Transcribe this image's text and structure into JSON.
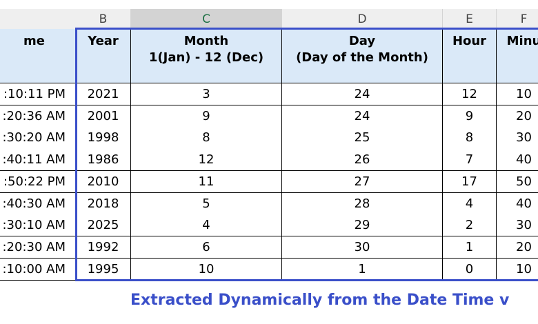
{
  "columns": [
    "B",
    "C",
    "D",
    "E",
    "F"
  ],
  "headers": {
    "a": "me",
    "b": "Year",
    "c": "Month\n1(Jan) - 12 (Dec)",
    "d": "Day\n(Day of the Month)",
    "e": "Hour",
    "f": "Minu"
  },
  "rows": [
    {
      "a": ":10:11 PM",
      "b": "2021",
      "c": "3",
      "d": "24",
      "e": "12",
      "f": "10"
    },
    {
      "a": ":20:36 AM",
      "b": "2001",
      "c": "9",
      "d": "24",
      "e": "9",
      "f": "20"
    },
    {
      "a": ":30:20 AM",
      "b": "1998",
      "c": "8",
      "d": "25",
      "e": "8",
      "f": "30"
    },
    {
      "a": ":40:11 AM",
      "b": "1986",
      "c": "12",
      "d": "26",
      "e": "7",
      "f": "40"
    },
    {
      "a": ":50:22 PM",
      "b": "2010",
      "c": "11",
      "d": "27",
      "e": "17",
      "f": "50"
    },
    {
      "a": ":40:30 AM",
      "b": "2018",
      "c": "5",
      "d": "28",
      "e": "4",
      "f": "40"
    },
    {
      "a": ":30:10 AM",
      "b": "2025",
      "c": "4",
      "d": "29",
      "e": "2",
      "f": "30"
    },
    {
      "a": ":20:30 AM",
      "b": "1992",
      "c": "6",
      "d": "30",
      "e": "1",
      "f": "20"
    },
    {
      "a": ":10:00 AM",
      "b": "1995",
      "c": "10",
      "d": "1",
      "e": "0",
      "f": "10"
    }
  ],
  "caption": "Extracted Dynamically from the Date Time v",
  "colors": {
    "header_fill": "#dae9f8",
    "highlight": "#3a4fc9",
    "selected_col": "#1e7145"
  }
}
